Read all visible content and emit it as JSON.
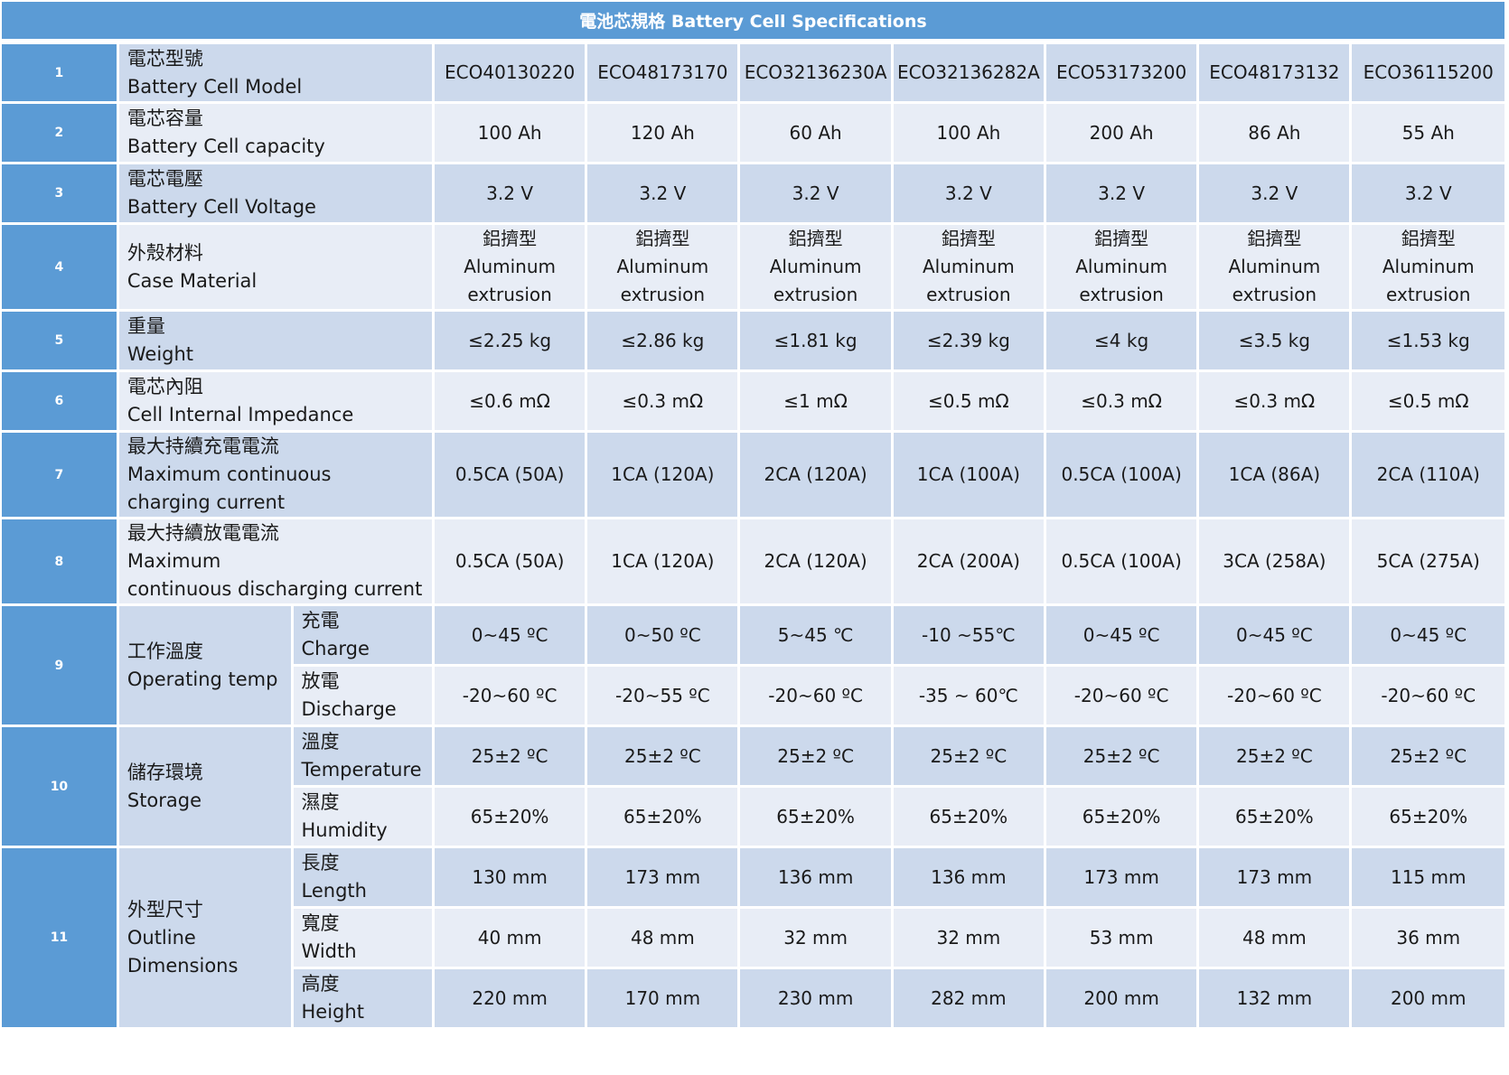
{
  "title": "電池芯規格 Battery Cell Specifications",
  "models": [
    "ECO40130220",
    "ECO48173170",
    "ECO32136230A",
    "ECO32136282A",
    "ECO53173200",
    "ECO48173132",
    "ECO36115200"
  ],
  "rows": {
    "model": {
      "num": "1",
      "zh": "電芯型號",
      "en": "Battery Cell Model"
    },
    "capacity": {
      "num": "2",
      "zh": "電芯容量",
      "en": "Battery Cell capacity",
      "values": [
        "100 Ah",
        "120 Ah",
        "60 Ah",
        "100 Ah",
        "200 Ah",
        "86 Ah",
        "55 Ah"
      ]
    },
    "voltage": {
      "num": "3",
      "zh": "電芯電壓",
      "en": "Battery Cell Voltage",
      "values": [
        "3.2 V",
        "3.2 V",
        "3.2 V",
        "3.2 V",
        "3.2 V",
        "3.2 V",
        "3.2 V"
      ]
    },
    "case": {
      "num": "4",
      "zh": "外殼材料",
      "en": "Case Material",
      "value_zh": "鋁擠型",
      "value_en1": "Aluminum",
      "value_en2": "extrusion"
    },
    "weight": {
      "num": "5",
      "zh": "重量",
      "en": "Weight",
      "values": [
        "≤2.25 kg",
        "≤2.86 kg",
        "≤1.81 kg",
        "≤2.39 kg",
        "≤4 kg",
        "≤3.5 kg",
        "≤1.53 kg"
      ]
    },
    "impedance": {
      "num": "6",
      "zh": "電芯內阻",
      "en": "Cell Internal Impedance",
      "values": [
        "≤0.6 mΩ",
        "≤0.3 mΩ",
        "≤1 mΩ",
        "≤0.5 mΩ",
        "≤0.3 mΩ",
        "≤0.3 mΩ",
        "≤0.5 mΩ"
      ]
    },
    "charge_current": {
      "num": "7",
      "zh": "最大持續充電電流",
      "en1": "Maximum continuous",
      "en2": "charging current",
      "values": [
        "0.5CA (50A)",
        "1CA (120A)",
        "2CA (120A)",
        "1CA (100A)",
        "0.5CA (100A)",
        "1CA (86A)",
        "2CA (110A)"
      ]
    },
    "discharge_current": {
      "num": "8",
      "zh": "最大持續放電電流",
      "en1": "Maximum",
      "en2": "continuous discharging current",
      "values": [
        "0.5CA (50A)",
        "1CA (120A)",
        "2CA (120A)",
        "2CA (200A)",
        "0.5CA (100A)",
        "3CA (258A)",
        "5CA (275A)"
      ]
    },
    "operating_temp": {
      "num": "9",
      "zh": "工作溫度",
      "en": "Operating temp",
      "charge": {
        "zh": "充電",
        "en": "Charge",
        "values": [
          "0~45 ºC",
          "0~50 ºC",
          "5~45 ℃",
          "-10 ~55℃",
          "0~45 ºC",
          "0~45 ºC",
          "0~45 ºC"
        ]
      },
      "discharge": {
        "zh": "放電",
        "en": "Discharge",
        "values": [
          "-20~60 ºC",
          "-20~55 ºC",
          "-20~60 ºC",
          "-35 ~ 60℃",
          "-20~60 ºC",
          "-20~60 ºC",
          "-20~60 ºC"
        ]
      }
    },
    "storage": {
      "num": "10",
      "zh": "儲存環境",
      "en": "Storage",
      "temperature": {
        "zh": "溫度",
        "en": "Temperature",
        "values": [
          "25±2 ºC",
          "25±2 ºC",
          "25±2 ºC",
          "25±2 ºC",
          "25±2 ºC",
          "25±2 ºC",
          "25±2 ºC"
        ]
      },
      "humidity": {
        "zh": "濕度",
        "en": "Humidity",
        "values": [
          "65±20%",
          "65±20%",
          "65±20%",
          "65±20%",
          "65±20%",
          "65±20%",
          "65±20%"
        ]
      }
    },
    "dimensions": {
      "num": "11",
      "zh": "外型尺寸",
      "en1": "Outline",
      "en2": "Dimensions",
      "length": {
        "zh": "長度",
        "en": "Length",
        "values": [
          "130 mm",
          "173 mm",
          "136 mm",
          "136 mm",
          "173 mm",
          "173 mm",
          "115 mm"
        ]
      },
      "width": {
        "zh": "寬度",
        "en": "Width",
        "values": [
          "40 mm",
          "48 mm",
          "32 mm",
          "32 mm",
          "53 mm",
          "48 mm",
          "36 mm"
        ]
      },
      "height": {
        "zh": "高度",
        "en": "Height",
        "values": [
          "220 mm",
          "170 mm",
          "230 mm",
          "282 mm",
          "200 mm",
          "132 mm",
          "200 mm"
        ]
      }
    }
  }
}
